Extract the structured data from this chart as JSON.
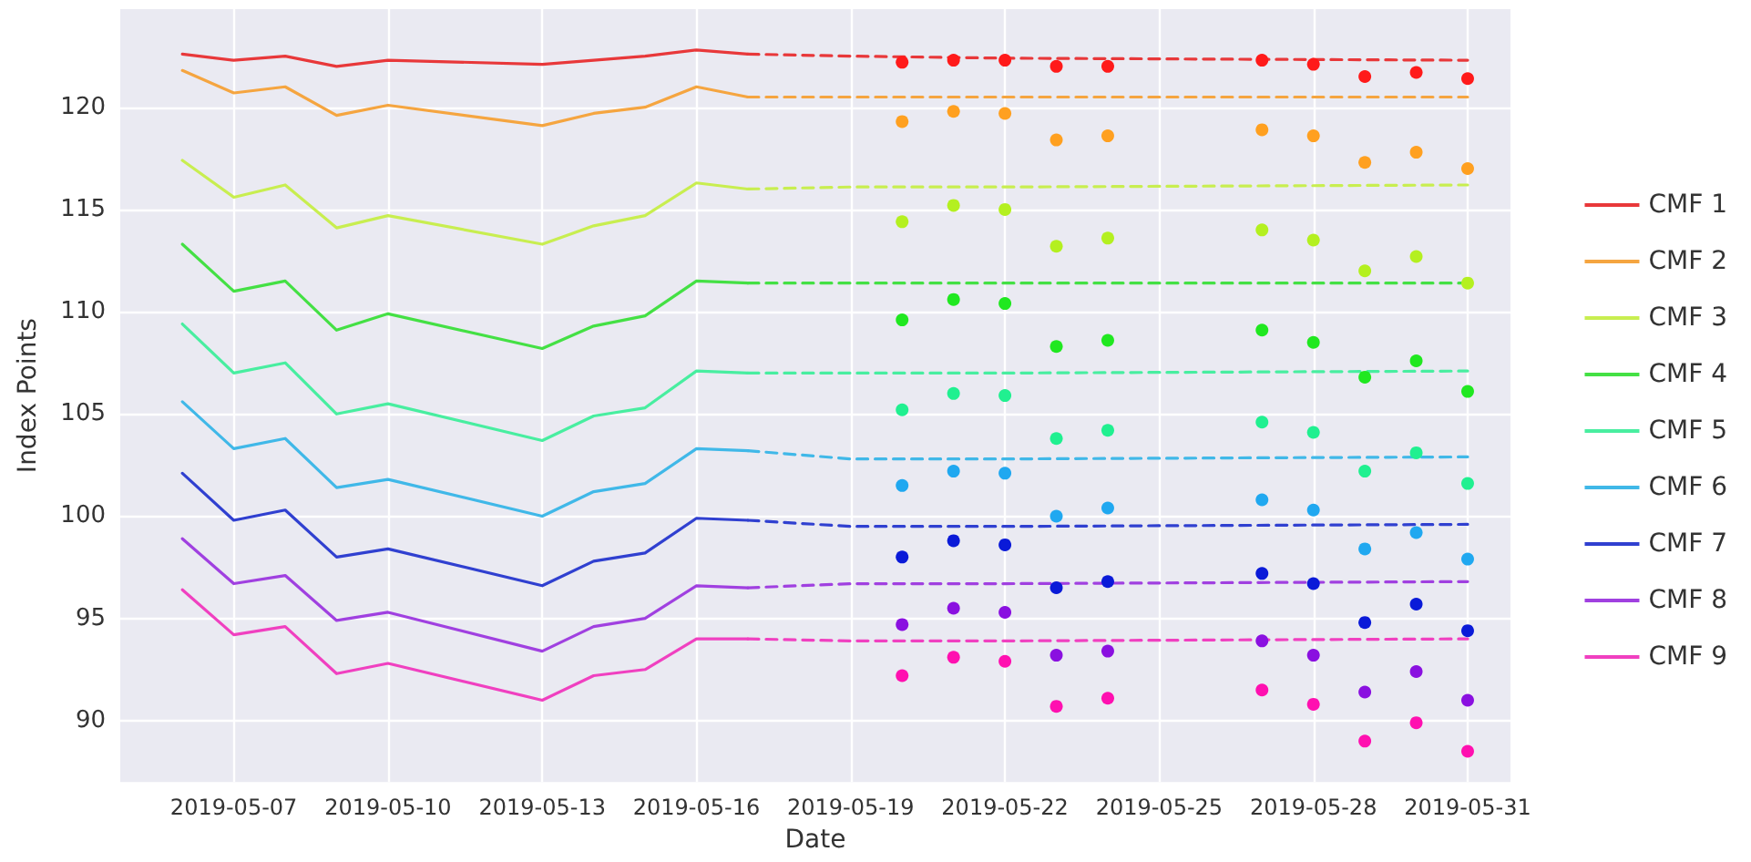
{
  "chart_data": {
    "type": "line",
    "xlabel": "Date",
    "ylabel": "Index Points",
    "x": [
      "2019-05-06",
      "2019-05-07",
      "2019-05-08",
      "2019-05-09",
      "2019-05-10",
      "2019-05-13",
      "2019-05-14",
      "2019-05-15",
      "2019-05-16",
      "2019-05-17"
    ],
    "xlim": [
      "2019-05-04T19:00",
      "2019-05-31T20:00"
    ],
    "xticks": [
      "2019-05-07",
      "2019-05-10",
      "2019-05-13",
      "2019-05-16",
      "2019-05-19",
      "2019-05-22",
      "2019-05-25",
      "2019-05-28",
      "2019-05-31"
    ],
    "ylim": [
      87,
      124.8
    ],
    "yticks": [
      90,
      95,
      100,
      105,
      110,
      115,
      120
    ],
    "grid": true,
    "legend": "right",
    "marker": "none",
    "line_style": "solid",
    "series": [
      {
        "name": "CMF 1",
        "color": "#e8383a",
        "values": [
          122.6,
          122.3,
          122.5,
          122.0,
          122.3,
          122.1,
          122.3,
          122.5,
          122.8,
          122.6
        ]
      },
      {
        "name": "CMF 2",
        "color": "#f5a540",
        "values": [
          121.8,
          120.7,
          121.0,
          119.6,
          120.1,
          119.1,
          119.7,
          120.0,
          121.0,
          120.5
        ]
      },
      {
        "name": "CMF 3",
        "color": "#c8ee50",
        "values": [
          117.4,
          115.6,
          116.2,
          114.1,
          114.7,
          113.3,
          114.2,
          114.7,
          116.3,
          116.0
        ]
      },
      {
        "name": "CMF 4",
        "color": "#44e044",
        "values": [
          113.3,
          111.0,
          111.5,
          109.1,
          109.9,
          108.2,
          109.3,
          109.8,
          111.5,
          111.4
        ]
      },
      {
        "name": "CMF 5",
        "color": "#48eea0",
        "values": [
          109.4,
          107.0,
          107.5,
          105.0,
          105.5,
          103.7,
          104.9,
          105.3,
          107.1,
          107.0
        ]
      },
      {
        "name": "CMF 6",
        "color": "#40b8e8",
        "values": [
          105.6,
          103.3,
          103.8,
          101.4,
          101.8,
          100.0,
          101.2,
          101.6,
          103.3,
          103.2
        ]
      },
      {
        "name": "CMF 7",
        "color": "#3040d0",
        "values": [
          102.1,
          99.8,
          100.3,
          98.0,
          98.4,
          96.6,
          97.8,
          98.2,
          99.9,
          99.8
        ]
      },
      {
        "name": "CMF 8",
        "color": "#a040e0",
        "values": [
          98.9,
          96.7,
          97.1,
          94.9,
          95.3,
          93.4,
          94.6,
          95.0,
          96.6,
          96.5
        ]
      },
      {
        "name": "CMF 9",
        "color": "#f040c0",
        "values": [
          96.4,
          94.2,
          94.6,
          92.3,
          92.8,
          91.0,
          92.2,
          92.5,
          94.0,
          94.0
        ]
      },
      {
        "type": "line",
        "line_style": "dashed",
        "color": "#e8383a",
        "x": [
          "2019-05-17",
          "2019-05-19",
          "2019-05-22",
          "2019-05-31"
        ],
        "values": [
          122.6,
          122.5,
          122.4,
          122.3
        ]
      },
      {
        "type": "line",
        "line_style": "dashed",
        "color": "#f5a540",
        "x": [
          "2019-05-17",
          "2019-05-19",
          "2019-05-22",
          "2019-05-31"
        ],
        "values": [
          120.5,
          120.5,
          120.5,
          120.5
        ]
      },
      {
        "type": "line",
        "line_style": "dashed",
        "color": "#c8ee50",
        "x": [
          "2019-05-17",
          "2019-05-19",
          "2019-05-22",
          "2019-05-31"
        ],
        "values": [
          116.0,
          116.1,
          116.1,
          116.2
        ]
      },
      {
        "type": "line",
        "line_style": "dashed",
        "color": "#44e044",
        "x": [
          "2019-05-17",
          "2019-05-19",
          "2019-05-22",
          "2019-05-31"
        ],
        "values": [
          111.4,
          111.4,
          111.4,
          111.4
        ]
      },
      {
        "type": "line",
        "line_style": "dashed",
        "color": "#48eea0",
        "x": [
          "2019-05-17",
          "2019-05-19",
          "2019-05-22",
          "2019-05-31"
        ],
        "values": [
          107.0,
          107.0,
          107.0,
          107.1
        ]
      },
      {
        "type": "line",
        "line_style": "dashed",
        "color": "#40b8e8",
        "x": [
          "2019-05-17",
          "2019-05-19",
          "2019-05-22",
          "2019-05-31"
        ],
        "values": [
          103.2,
          102.8,
          102.8,
          102.9
        ]
      },
      {
        "type": "line",
        "line_style": "dashed",
        "color": "#3040d0",
        "x": [
          "2019-05-17",
          "2019-05-19",
          "2019-05-22",
          "2019-05-31"
        ],
        "values": [
          99.8,
          99.5,
          99.5,
          99.6
        ]
      },
      {
        "type": "line",
        "line_style": "dashed",
        "color": "#a040e0",
        "x": [
          "2019-05-17",
          "2019-05-19",
          "2019-05-22",
          "2019-05-31"
        ],
        "values": [
          96.5,
          96.7,
          96.7,
          96.8
        ]
      },
      {
        "type": "line",
        "line_style": "dashed",
        "color": "#f040c0",
        "x": [
          "2019-05-17",
          "2019-05-19",
          "2019-05-22",
          "2019-05-31"
        ],
        "values": [
          94.0,
          93.9,
          93.9,
          94.0
        ]
      },
      {
        "type": "scatter",
        "marker": "circle",
        "color": "#ff1a1a",
        "x": [
          "2019-05-20",
          "2019-05-21",
          "2019-05-22",
          "2019-05-23",
          "2019-05-24",
          "2019-05-27",
          "2019-05-28",
          "2019-05-29",
          "2019-05-30",
          "2019-05-31"
        ],
        "values": [
          122.2,
          122.3,
          122.3,
          122.0,
          122.0,
          122.3,
          122.1,
          121.5,
          121.7,
          121.4
        ]
      },
      {
        "type": "scatter",
        "marker": "circle",
        "color": "#ffa020",
        "x": [
          "2019-05-20",
          "2019-05-21",
          "2019-05-22",
          "2019-05-23",
          "2019-05-24",
          "2019-05-27",
          "2019-05-28",
          "2019-05-29",
          "2019-05-30",
          "2019-05-31"
        ],
        "values": [
          119.3,
          119.8,
          119.7,
          118.4,
          118.6,
          118.9,
          118.6,
          117.3,
          117.8,
          117.0
        ]
      },
      {
        "type": "scatter",
        "marker": "circle",
        "color": "#b4f020",
        "x": [
          "2019-05-20",
          "2019-05-21",
          "2019-05-22",
          "2019-05-23",
          "2019-05-24",
          "2019-05-27",
          "2019-05-28",
          "2019-05-29",
          "2019-05-30",
          "2019-05-31"
        ],
        "values": [
          114.4,
          115.2,
          115.0,
          113.2,
          113.6,
          114.0,
          113.5,
          112.0,
          112.7,
          111.4
        ]
      },
      {
        "type": "scatter",
        "marker": "circle",
        "color": "#20e820",
        "x": [
          "2019-05-20",
          "2019-05-21",
          "2019-05-22",
          "2019-05-23",
          "2019-05-24",
          "2019-05-27",
          "2019-05-28",
          "2019-05-29",
          "2019-05-30",
          "2019-05-31"
        ],
        "values": [
          109.6,
          110.6,
          110.4,
          108.3,
          108.6,
          109.1,
          108.5,
          106.8,
          107.6,
          106.1
        ]
      },
      {
        "type": "scatter",
        "marker": "circle",
        "color": "#20f090",
        "x": [
          "2019-05-20",
          "2019-05-21",
          "2019-05-22",
          "2019-05-23",
          "2019-05-24",
          "2019-05-27",
          "2019-05-28",
          "2019-05-29",
          "2019-05-30",
          "2019-05-31"
        ],
        "values": [
          105.2,
          106.0,
          105.9,
          103.8,
          104.2,
          104.6,
          104.1,
          102.2,
          103.1,
          101.6
        ]
      },
      {
        "type": "scatter",
        "marker": "circle",
        "color": "#20a8f0",
        "x": [
          "2019-05-20",
          "2019-05-21",
          "2019-05-22",
          "2019-05-23",
          "2019-05-24",
          "2019-05-27",
          "2019-05-28",
          "2019-05-29",
          "2019-05-30",
          "2019-05-31"
        ],
        "values": [
          101.5,
          102.2,
          102.1,
          100.0,
          100.4,
          100.8,
          100.3,
          98.4,
          99.2,
          97.9
        ]
      },
      {
        "type": "scatter",
        "marker": "circle",
        "color": "#0a1ad8",
        "x": [
          "2019-05-20",
          "2019-05-21",
          "2019-05-22",
          "2019-05-23",
          "2019-05-24",
          "2019-05-27",
          "2019-05-28",
          "2019-05-29",
          "2019-05-30",
          "2019-05-31"
        ],
        "values": [
          98.0,
          98.8,
          98.6,
          96.5,
          96.8,
          97.2,
          96.7,
          94.8,
          95.7,
          94.4
        ]
      },
      {
        "type": "scatter",
        "marker": "circle",
        "color": "#8a10e0",
        "x": [
          "2019-05-20",
          "2019-05-21",
          "2019-05-22",
          "2019-05-23",
          "2019-05-24",
          "2019-05-27",
          "2019-05-28",
          "2019-05-29",
          "2019-05-30",
          "2019-05-31"
        ],
        "values": [
          94.7,
          95.5,
          95.3,
          93.2,
          93.4,
          93.9,
          93.2,
          91.4,
          92.4,
          91.0
        ]
      },
      {
        "type": "scatter",
        "marker": "circle",
        "color": "#ff10b0",
        "x": [
          "2019-05-20",
          "2019-05-21",
          "2019-05-22",
          "2019-05-23",
          "2019-05-24",
          "2019-05-27",
          "2019-05-28",
          "2019-05-29",
          "2019-05-30",
          "2019-05-31"
        ],
        "values": [
          92.2,
          93.1,
          92.9,
          90.7,
          91.1,
          91.5,
          90.8,
          89.0,
          89.9,
          88.5
        ]
      }
    ]
  }
}
